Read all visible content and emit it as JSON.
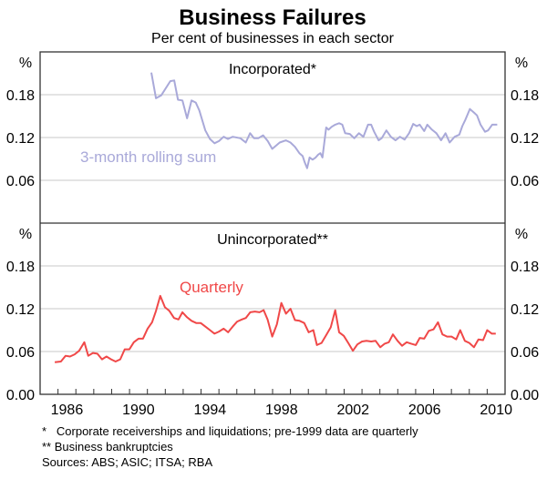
{
  "chart_data": {
    "type": "line",
    "title": "Business Failures",
    "subtitle": "Per cent of businesses in each sector",
    "unit_label": "%",
    "xlim": [
      1985,
      2011
    ],
    "x_tick_labels": [
      "1986",
      "1990",
      "1994",
      "1998",
      "2002",
      "2006",
      "2010"
    ],
    "grid": true,
    "panels": [
      {
        "title": "Incorporated*",
        "ylim": [
          0,
          0.24
        ],
        "y_tick_labels": [
          "0.06",
          "0.12",
          "0.18"
        ],
        "series": [
          {
            "name": "3-month rolling sum",
            "color": "#a9a9d9",
            "x": [
              1991.22,
              1991.48,
              1991.77,
              1992.28,
              1992.5,
              1992.71,
              1992.96,
              1993.22,
              1993.47,
              1993.7,
              1993.9,
              1994.24,
              1994.5,
              1994.75,
              1995.0,
              1995.26,
              1995.5,
              1995.77,
              1996.2,
              1996.5,
              1996.74,
              1996.96,
              1997.2,
              1997.47,
              1997.73,
              1997.98,
              1998.4,
              1998.75,
              1999.0,
              1999.25,
              1999.5,
              1999.68,
              1999.8,
              1999.93,
              2000.07,
              2000.24,
              2000.41,
              2000.55,
              2000.67,
              2000.79,
              2001.0,
              2001.13,
              2001.3,
              2001.5,
              2001.72,
              2001.9,
              2002.06,
              2002.32,
              2002.57,
              2002.83,
              2003.08,
              2003.34,
              2003.51,
              2003.68,
              2003.93,
              2004.1,
              2004.36,
              2004.61,
              2004.87,
              2005.12,
              2005.38,
              2005.63,
              2005.86,
              2006.06,
              2006.23,
              2006.48,
              2006.65,
              2006.91,
              2007.16,
              2007.42,
              2007.67,
              2007.9,
              2008.18,
              2008.44,
              2008.61,
              2008.78,
              2009.03,
              2009.26,
              2009.43,
              2009.63,
              2009.88,
              2010.05,
              2010.28,
              2010.56
            ],
            "y": [
              0.211,
              0.175,
              0.179,
              0.199,
              0.2,
              0.173,
              0.172,
              0.147,
              0.172,
              0.169,
              0.158,
              0.13,
              0.118,
              0.112,
              0.115,
              0.121,
              0.118,
              0.121,
              0.119,
              0.113,
              0.126,
              0.119,
              0.119,
              0.123,
              0.115,
              0.104,
              0.113,
              0.116,
              0.113,
              0.107,
              0.098,
              0.094,
              0.085,
              0.077,
              0.092,
              0.089,
              0.092,
              0.096,
              0.098,
              0.092,
              0.134,
              0.131,
              0.135,
              0.138,
              0.14,
              0.138,
              0.126,
              0.125,
              0.119,
              0.126,
              0.121,
              0.138,
              0.138,
              0.128,
              0.116,
              0.119,
              0.13,
              0.121,
              0.116,
              0.121,
              0.117,
              0.126,
              0.139,
              0.136,
              0.138,
              0.129,
              0.138,
              0.131,
              0.126,
              0.116,
              0.126,
              0.113,
              0.121,
              0.124,
              0.136,
              0.145,
              0.16,
              0.155,
              0.151,
              0.138,
              0.128,
              0.13,
              0.138,
              0.138
            ]
          }
        ]
      },
      {
        "title": "Unincorporated**",
        "ylim": [
          0,
          0.24
        ],
        "y_tick_labels": [
          "0.00",
          "0.06",
          "0.12",
          "0.18"
        ],
        "series": [
          {
            "name": "Quarterly",
            "color": "#f04848",
            "x": [
              1985.82,
              1986.16,
              1986.42,
              1986.67,
              1986.93,
              1987.18,
              1987.47,
              1987.69,
              1987.95,
              1988.2,
              1988.46,
              1988.71,
              1988.97,
              1989.22,
              1989.48,
              1989.73,
              1989.99,
              1990.24,
              1990.5,
              1990.75,
              1991.01,
              1991.26,
              1991.48,
              1991.72,
              1991.98,
              1992.23,
              1992.49,
              1992.74,
              1992.96,
              1993.22,
              1993.47,
              1993.73,
              1993.98,
              1994.24,
              1994.5,
              1994.75,
              1995.0,
              1995.26,
              1995.51,
              1995.77,
              1996.02,
              1996.28,
              1996.5,
              1996.75,
              1997.01,
              1997.27,
              1997.5,
              1997.72,
              1997.98,
              1998.24,
              1998.49,
              1998.75,
              1999.0,
              1999.25,
              1999.51,
              1999.77,
              2000.02,
              2000.28,
              2000.48,
              2000.74,
              2001.0,
              2001.25,
              2001.5,
              2001.72,
              2001.98,
              2002.23,
              2002.49,
              2002.74,
              2003.0,
              2003.25,
              2003.51,
              2003.76,
              2004.02,
              2004.27,
              2004.5,
              2004.73,
              2004.99,
              2005.24,
              2005.5,
              2005.75,
              2006.01,
              2006.23,
              2006.48,
              2006.74,
              2007.0,
              2007.25,
              2007.5,
              2007.76,
              2008.01,
              2008.27,
              2008.49,
              2008.75,
              2009.0,
              2009.26,
              2009.51,
              2009.77,
              2010.0,
              2010.26,
              2010.48
            ],
            "y": [
              0.045,
              0.046,
              0.054,
              0.053,
              0.056,
              0.061,
              0.073,
              0.054,
              0.058,
              0.057,
              0.049,
              0.053,
              0.049,
              0.046,
              0.049,
              0.063,
              0.063,
              0.073,
              0.078,
              0.078,
              0.092,
              0.101,
              0.117,
              0.138,
              0.122,
              0.117,
              0.107,
              0.105,
              0.115,
              0.108,
              0.103,
              0.1,
              0.1,
              0.095,
              0.09,
              0.085,
              0.088,
              0.092,
              0.087,
              0.095,
              0.102,
              0.105,
              0.107,
              0.115,
              0.116,
              0.115,
              0.118,
              0.105,
              0.081,
              0.098,
              0.128,
              0.113,
              0.12,
              0.104,
              0.103,
              0.1,
              0.087,
              0.09,
              0.069,
              0.072,
              0.083,
              0.094,
              0.118,
              0.087,
              0.082,
              0.072,
              0.061,
              0.07,
              0.074,
              0.075,
              0.074,
              0.075,
              0.066,
              0.071,
              0.073,
              0.084,
              0.075,
              0.068,
              0.073,
              0.071,
              0.069,
              0.079,
              0.078,
              0.089,
              0.091,
              0.101,
              0.084,
              0.081,
              0.081,
              0.077,
              0.09,
              0.075,
              0.072,
              0.066,
              0.077,
              0.076,
              0.09,
              0.085,
              0.085
            ]
          }
        ]
      }
    ],
    "footnotes": [
      "*   Corporate receiverships and liquidations; pre-1999 data are quarterly",
      "** Business bankruptcies",
      "Sources: ABS; ASIC; ITSA; RBA"
    ]
  }
}
